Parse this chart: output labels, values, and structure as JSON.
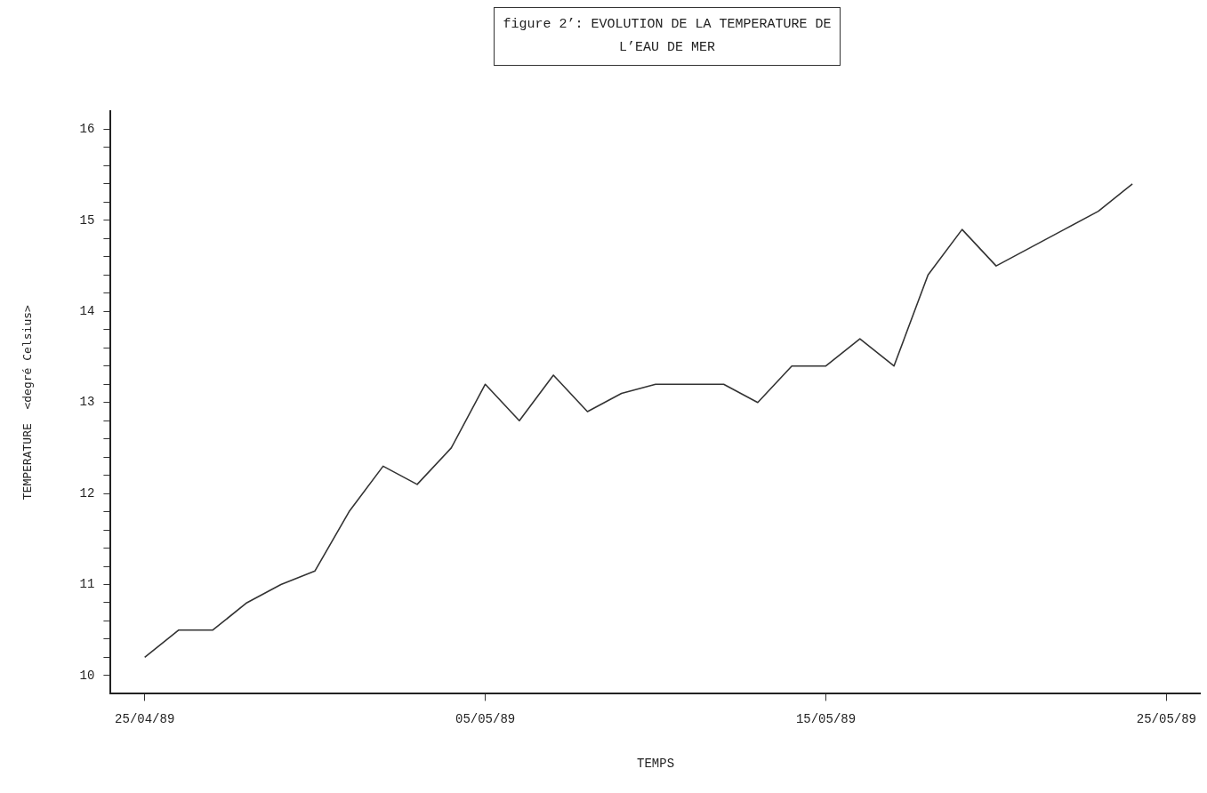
{
  "chart_data": {
    "type": "line",
    "title": "figure 2’: EVOLUTION DE LA TEMPERATURE DE L’EAU DE MER",
    "xlabel": "TEMPS",
    "ylabel": "TEMPERATURE  <degré Celsius>",
    "x": [
      "1989-04-25",
      "1989-04-26",
      "1989-04-27",
      "1989-04-28",
      "1989-04-29",
      "1989-04-30",
      "1989-05-01",
      "1989-05-02",
      "1989-05-03",
      "1989-05-04",
      "1989-05-05",
      "1989-05-06",
      "1989-05-07",
      "1989-05-08",
      "1989-05-09",
      "1989-05-10",
      "1989-05-11",
      "1989-05-12",
      "1989-05-13",
      "1989-05-14",
      "1989-05-15",
      "1989-05-16",
      "1989-05-17",
      "1989-05-18",
      "1989-05-19",
      "1989-05-20",
      "1989-05-21",
      "1989-05-22",
      "1989-05-23",
      "1989-05-24"
    ],
    "values": [
      10.2,
      10.5,
      10.5,
      10.8,
      11.0,
      11.15,
      11.8,
      12.3,
      12.1,
      12.5,
      13.2,
      12.8,
      13.3,
      12.9,
      13.1,
      13.2,
      13.2,
      13.2,
      13.0,
      13.4,
      13.4,
      13.7,
      13.4,
      14.4,
      14.9,
      14.5,
      14.7,
      14.9,
      15.1,
      15.4
    ],
    "color": "#333333",
    "marker": "none",
    "line_style": "solid",
    "grid": false,
    "legend": false,
    "xlim": [
      "1989-04-24",
      "1989-05-26"
    ],
    "xticks": [
      {
        "value": "1989-04-25",
        "label": "25/04/89"
      },
      {
        "value": "1989-05-05",
        "label": "05/05/89"
      },
      {
        "value": "1989-05-15",
        "label": "15/05/89"
      },
      {
        "value": "1989-05-25",
        "label": "25/05/89"
      }
    ],
    "ylim": [
      9.8,
      16.2
    ],
    "yticks": [
      10,
      {
        "value": 10.2,
        "label": null
      },
      {
        "value": 10.4,
        "label": null
      },
      {
        "value": 10.6,
        "label": null
      },
      {
        "value": 10.8,
        "label": null
      },
      11,
      {
        "value": 11.2,
        "label": null
      },
      {
        "value": 11.4,
        "label": null
      },
      {
        "value": 11.6,
        "label": null
      },
      {
        "value": 11.8,
        "label": null
      },
      12,
      {
        "value": 12.2,
        "label": null
      },
      {
        "value": 12.4,
        "label": null
      },
      {
        "value": 12.6,
        "label": null
      },
      {
        "value": 12.8,
        "label": null
      },
      13,
      {
        "value": 13.2,
        "label": null
      },
      {
        "value": 13.4,
        "label": null
      },
      {
        "value": 13.6,
        "label": null
      },
      {
        "value": 13.8,
        "label": null
      },
      14,
      {
        "value": 14.2,
        "label": null
      },
      {
        "value": 14.4,
        "label": null
      },
      {
        "value": 14.6,
        "label": null
      },
      {
        "value": 14.8,
        "label": null
      },
      15,
      {
        "value": 15.2,
        "label": null
      },
      {
        "value": 15.4,
        "label": null
      },
      {
        "value": 15.6,
        "label": null
      },
      {
        "value": 15.8,
        "label": null
      },
      16
    ]
  }
}
